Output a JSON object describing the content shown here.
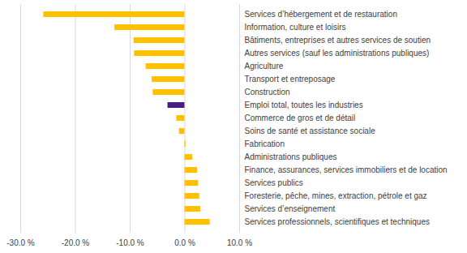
{
  "chart_data": {
    "type": "bar",
    "orientation": "horizontal",
    "grid": true,
    "categories": [
      "Services d’hébergement et de restauration",
      "Information, culture et loisirs",
      "Bâtiments, entreprises et autres services de soutien",
      "Autres services (sauf les administrations publiques)",
      "Agriculture",
      "Transport et entreposage",
      "Construction",
      "Emploi total, toutes les industries",
      "Commerce de gros et de détail",
      "Soins de santé et assistance sociale",
      "Fabrication",
      "Administrations publiques",
      "Finance, assurances, services immobiliers et de location",
      "Services publics",
      "Foresterie, pêche, mines, extraction, pétrole et gaz",
      "Services d’enseignement",
      "Services professionnels, scientifiques et techniques"
    ],
    "values": [
      -25.8,
      -12.8,
      -9.3,
      -9.2,
      -7.1,
      -6.0,
      -5.8,
      -3.1,
      -1.5,
      -1.0,
      0.2,
      1.4,
      2.3,
      2.5,
      2.7,
      2.9,
      4.6
    ],
    "colors": [
      "#ffc000",
      "#ffc000",
      "#ffc000",
      "#ffc000",
      "#ffc000",
      "#ffc000",
      "#ffc000",
      "#4b1c84",
      "#ffc000",
      "#ffc000",
      "#ffc000",
      "#ffc000",
      "#ffc000",
      "#ffc000",
      "#ffc000",
      "#ffc000",
      "#ffc000"
    ],
    "xlim": [
      -30,
      10
    ],
    "xticks": [
      {
        "value": -30,
        "label": "-30.0 %"
      },
      {
        "value": -20,
        "label": "-20.0 %"
      },
      {
        "value": -10,
        "label": "-10.0 %"
      },
      {
        "value": 0,
        "label": "0.0 %"
      },
      {
        "value": 10,
        "label": "10.0 %"
      }
    ]
  }
}
